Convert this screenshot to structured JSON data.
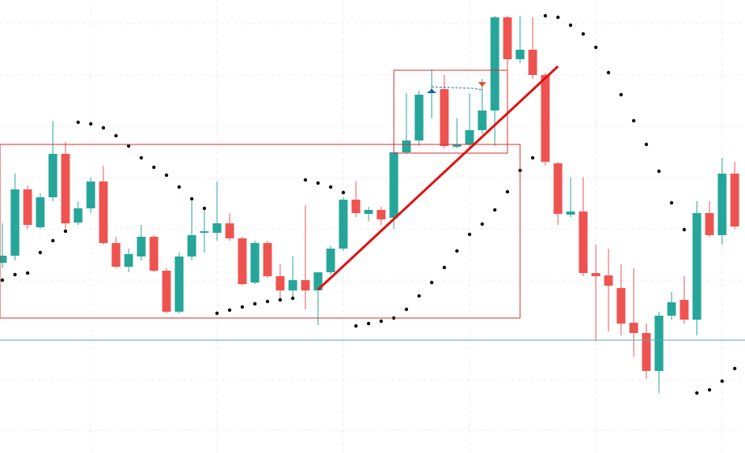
{
  "chart_data": {
    "type": "candlestick",
    "up_color": "#26a69a",
    "down_color": "#ef5350",
    "sar_color": "#000000",
    "ylim": [
      0,
      574
    ],
    "open": [
      241,
      250,
      334,
      286,
      324,
      379,
      292,
      310,
      344,
      266,
      236,
      249,
      274,
      231,
      179,
      249,
      279,
      279,
      291,
      272,
      216,
      266,
      224,
      206,
      219,
      206,
      229,
      259,
      321,
      303,
      308,
      298,
      381,
      396,
      456,
      461,
      388,
      391,
      409,
      434,
      552,
      499,
      511,
      479,
      367,
      302,
      306,
      228,
      225,
      209,
      165,
      152,
      104,
      174,
      194,
      169,
      304,
      276,
      354
    ],
    "high": [
      291,
      354,
      339,
      329,
      421,
      394,
      319,
      349,
      364,
      274,
      259,
      289,
      276,
      234,
      254,
      319,
      312,
      344,
      304,
      274,
      269,
      269,
      239,
      249,
      314,
      229,
      262,
      324,
      344,
      312,
      312,
      384,
      456,
      459,
      486,
      479,
      424,
      456,
      474,
      554,
      554,
      554,
      552,
      482,
      369,
      349,
      349,
      264,
      259,
      239,
      234,
      164,
      179,
      204,
      224,
      319,
      319,
      374,
      369
    ],
    "low": [
      234,
      244,
      284,
      284,
      319,
      284,
      289,
      304,
      264,
      234,
      229,
      244,
      229,
      177,
      177,
      244,
      254,
      269,
      269,
      212,
      214,
      222,
      194,
      194,
      182,
      162,
      226,
      256,
      299,
      294,
      289,
      284,
      379,
      389,
      424,
      386,
      386,
      384,
      404,
      389,
      479,
      494,
      474,
      364,
      289,
      299,
      224,
      142,
      154,
      149,
      122,
      94,
      76,
      169,
      164,
      149,
      274,
      264,
      284
    ],
    "close": [
      250,
      334,
      289,
      324,
      379,
      291,
      310,
      344,
      266,
      236,
      252,
      274,
      231,
      179,
      249,
      276,
      281,
      291,
      272,
      214,
      266,
      224,
      206,
      219,
      206,
      229,
      259,
      321,
      304,
      308,
      296,
      381,
      396,
      454,
      458,
      389,
      391,
      409,
      434,
      552,
      499,
      511,
      479,
      369,
      303,
      306,
      228,
      224,
      212,
      164,
      152,
      104,
      174,
      191,
      169,
      304,
      276,
      354,
      287
    ],
    "sar": [
      219,
      226,
      228,
      254,
      269,
      281,
      419,
      417,
      412,
      402,
      389,
      374,
      362,
      352,
      337,
      322,
      310,
      177,
      181,
      185,
      189,
      192,
      194,
      196,
      346,
      342,
      337,
      330,
      161,
      164,
      167,
      171,
      182,
      199,
      216,
      235,
      256,
      277,
      290,
      308,
      331,
      358,
      374,
      554,
      552,
      542,
      531,
      514,
      482,
      454,
      421,
      391,
      357,
      317,
      283,
      76,
      80,
      91,
      107
    ]
  }
}
